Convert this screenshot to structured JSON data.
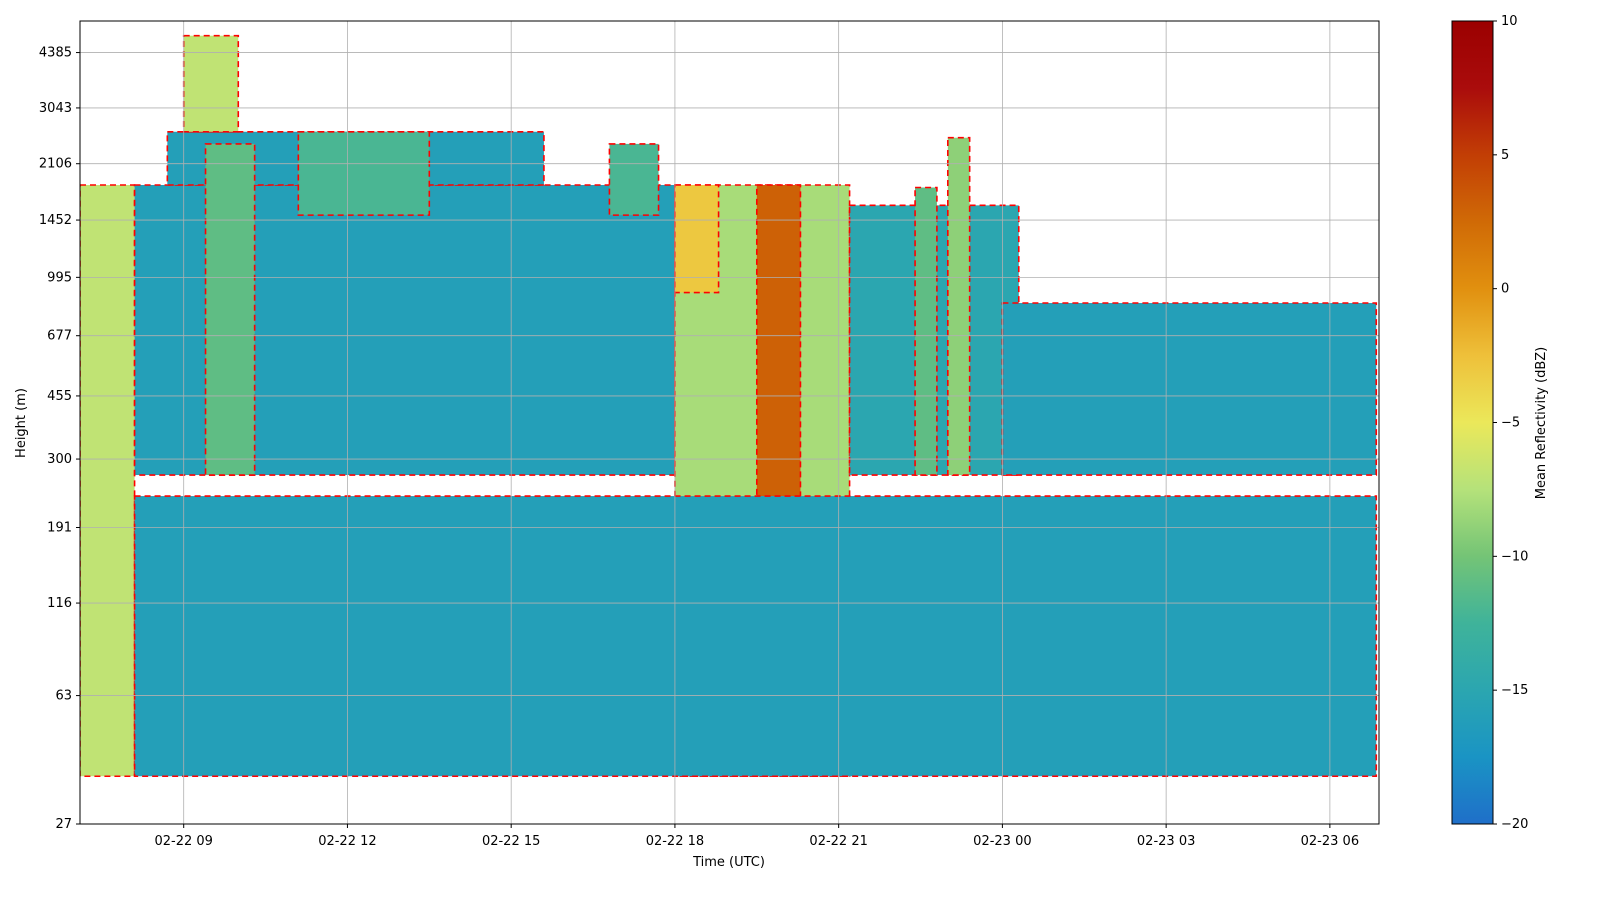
{
  "chart_data": {
    "type": "heatmap",
    "title": "",
    "xlabel": "Time (UTC)",
    "ylabel": "Height (m)",
    "x_tick_labels": [
      "02-22 09",
      "02-22 12",
      "02-22 15",
      "02-22 18",
      "02-22 21",
      "02-23 00",
      "02-23 03",
      "02-23 06"
    ],
    "x_ticks_hours": [
      9,
      12,
      15,
      18,
      21,
      24,
      27,
      30
    ],
    "xlim_hours": [
      7.1,
      30.9
    ],
    "y_scale": "log",
    "y_tick_labels": [
      "27",
      "63",
      "116",
      "191",
      "300",
      "455",
      "677",
      "995",
      "1452",
      "2106",
      "3043",
      "4385"
    ],
    "ylim": [
      27,
      5400
    ],
    "grid": true,
    "colorbar": {
      "label": "Mean Reflectivity (dBZ)",
      "min": -20,
      "max": 10,
      "tick_labels": [
        "10",
        "5",
        "0",
        "−5",
        "−10",
        "−15",
        "−20"
      ],
      "colormap": [
        "#1f6fc9",
        "#1a94c4",
        "#2ba6b0",
        "#3fb39a",
        "#74c476",
        "#b5e27a",
        "#ebe85a",
        "#eec03a",
        "#e1900f",
        "#d06a06",
        "#c23e05",
        "#aa0c0c",
        "#9b0000"
      ]
    },
    "contour": {
      "level_dbz": -10,
      "color": "#ff0000",
      "style": "dashed"
    },
    "features": [
      {
        "start_hour": 7.1,
        "end_hour": 8.1,
        "bottom_m": 37,
        "top_m": 1830,
        "dbz": -7
      },
      {
        "start_hour": 8.1,
        "end_hour": 18.0,
        "bottom_m": 270,
        "top_m": 1830,
        "dbz": -16
      },
      {
        "start_hour": 8.7,
        "end_hour": 15.6,
        "bottom_m": 1830,
        "top_m": 2600,
        "dbz": -16
      },
      {
        "start_hour": 9.0,
        "end_hour": 10.0,
        "bottom_m": 2600,
        "top_m": 4900,
        "dbz": -7
      },
      {
        "start_hour": 9.4,
        "end_hour": 10.3,
        "bottom_m": 270,
        "top_m": 2400,
        "dbz": -11
      },
      {
        "start_hour": 11.1,
        "end_hour": 13.5,
        "bottom_m": 1500,
        "top_m": 2600,
        "dbz": -12
      },
      {
        "start_hour": 16.8,
        "end_hour": 17.7,
        "bottom_m": 1500,
        "top_m": 2400,
        "dbz": -12
      },
      {
        "start_hour": 18.0,
        "end_hour": 21.2,
        "bottom_m": 37,
        "top_m": 1830,
        "dbz": -8
      },
      {
        "start_hour": 19.5,
        "end_hour": 20.3,
        "bottom_m": 37,
        "top_m": 1830,
        "dbz": 3
      },
      {
        "start_hour": 18.0,
        "end_hour": 18.8,
        "bottom_m": 900,
        "top_m": 1830,
        "dbz": -3
      },
      {
        "start_hour": 21.2,
        "end_hour": 24.3,
        "bottom_m": 270,
        "top_m": 1600,
        "dbz": -15
      },
      {
        "start_hour": 22.4,
        "end_hour": 22.8,
        "bottom_m": 270,
        "top_m": 1800,
        "dbz": -11
      },
      {
        "start_hour": 23.0,
        "end_hour": 23.4,
        "bottom_m": 270,
        "top_m": 2500,
        "dbz": -9
      },
      {
        "start_hour": 24.0,
        "end_hour": 30.85,
        "bottom_m": 270,
        "top_m": 840,
        "dbz": -16
      },
      {
        "start_hour": 8.1,
        "end_hour": 30.85,
        "bottom_m": 37,
        "top_m": 235,
        "dbz": -16
      }
    ]
  }
}
